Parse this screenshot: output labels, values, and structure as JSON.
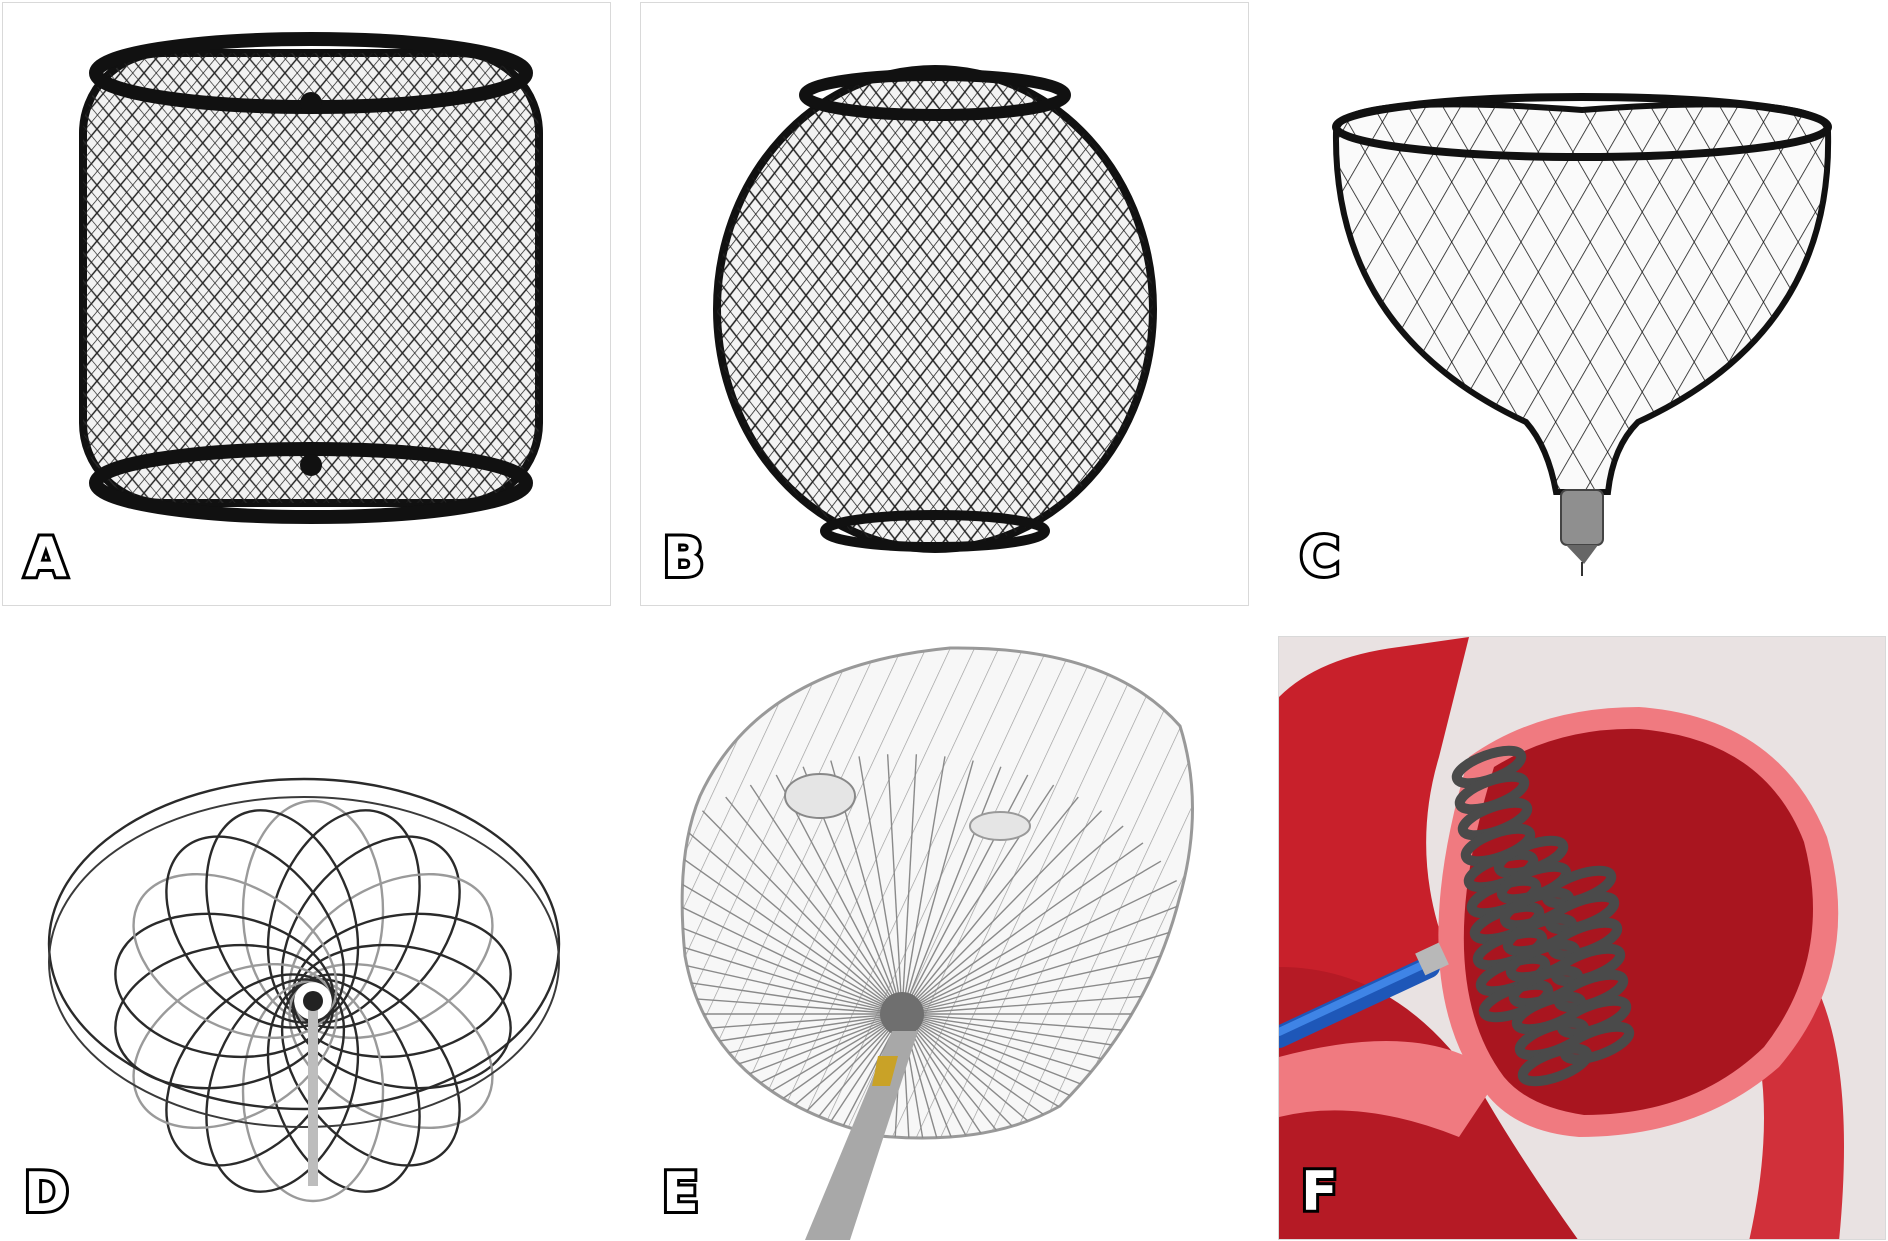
{
  "panels": [
    {
      "id": "A",
      "label": "A",
      "icon": "cylindrical-mesh-occluder"
    },
    {
      "id": "B",
      "label": "B",
      "icon": "spherical-mesh-occluder"
    },
    {
      "id": "C",
      "label": "C",
      "icon": "cup-mesh-occluder"
    },
    {
      "id": "D",
      "label": "D",
      "icon": "petal-wire-occluder"
    },
    {
      "id": "E",
      "label": "E",
      "icon": "fan-wire-occluder-with-catheter"
    },
    {
      "id": "F",
      "label": "F",
      "icon": "coil-device-in-appendage"
    }
  ],
  "colors": {
    "wire": "#1a1a1a",
    "wire_light": "#8a8a8a",
    "tissue": "#c8202b",
    "tissue_edge": "#f27a7f",
    "catheter": "#2d6fd6",
    "metal": "#9a9a9a"
  }
}
